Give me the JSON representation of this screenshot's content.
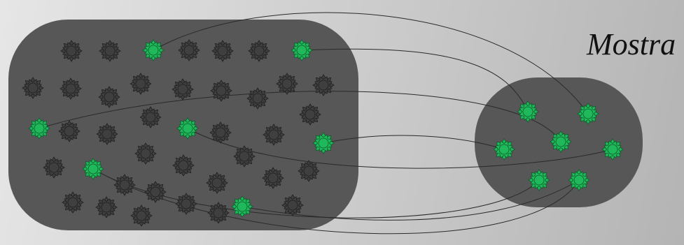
{
  "sample_label": "Mostra",
  "colors": {
    "set_fill": "#575757",
    "element_fill": "#3f3f3f",
    "element_stroke": "#1f1f1f",
    "selected_fill": "#1fb85a",
    "selected_stroke": "#0c5e2c",
    "line": "#2a2a2a"
  },
  "icons": {
    "element": "star-badge-icon",
    "selected": "selected-star-badge-icon"
  }
}
